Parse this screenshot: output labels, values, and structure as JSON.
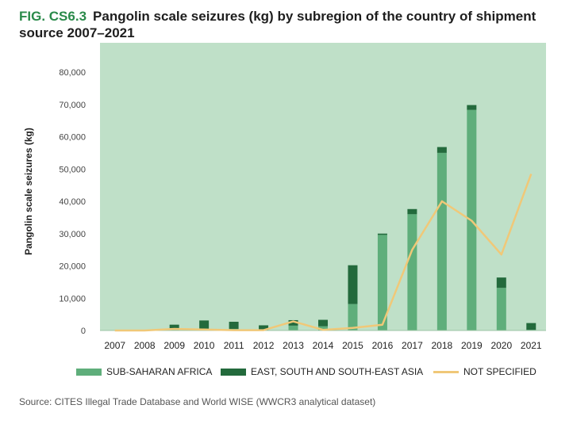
{
  "figure": {
    "label": "FIG. CS6.3",
    "title": "Pangolin scale seizures (kg) by subregion of the country of shipment source 2007–2021",
    "source": "Source: CITES Illegal Trade Database and World WISE (WWCR3 analytical dataset)"
  },
  "colors": {
    "plot_background": "#bfe0c8",
    "sub_saharan_africa": "#5fae7b",
    "asia": "#236a3c",
    "not_specified": "#f0c878",
    "figure_label": "#2a8a4a"
  },
  "chart_data": {
    "type": "bar",
    "stacked": true,
    "title": "Pangolin scale seizures (kg) by subregion of the country of shipment source 2007–2021",
    "ylabel": "Pangolin scale seizures (kg)",
    "xlabel": "",
    "ylim": [
      0,
      80000
    ],
    "yticks": [
      0,
      10000,
      20000,
      30000,
      40000,
      50000,
      60000,
      70000,
      80000
    ],
    "ytick_labels": [
      "0",
      "10,000",
      "20,000",
      "30,000",
      "40,000",
      "50,000",
      "60,000",
      "70,000",
      "80,000"
    ],
    "grid": false,
    "legend_position": "bottom",
    "categories": [
      "2007",
      "2008",
      "2009",
      "2010",
      "2011",
      "2012",
      "2013",
      "2014",
      "2015",
      "2016",
      "2017",
      "2018",
      "2019",
      "2020",
      "2021"
    ],
    "series": [
      {
        "name": "SUB-SAHARAN AFRICA",
        "kind": "bar",
        "values": [
          0,
          0,
          700,
          300,
          500,
          200,
          1500,
          1300,
          8200,
          29600,
          36000,
          55000,
          68300,
          13200,
          200
        ]
      },
      {
        "name": "EAST, SOUTH AND SOUTH-EAST ASIA",
        "kind": "bar",
        "values": [
          0,
          0,
          1100,
          2800,
          2200,
          1400,
          1700,
          2000,
          12000,
          400,
          1600,
          1800,
          1500,
          3200,
          2100
        ]
      },
      {
        "name": "NOT SPECIFIED",
        "kind": "line",
        "values": [
          0,
          0,
          500,
          300,
          100,
          100,
          2800,
          200,
          800,
          1800,
          25000,
          40000,
          34000,
          23500,
          48500
        ]
      }
    ]
  }
}
